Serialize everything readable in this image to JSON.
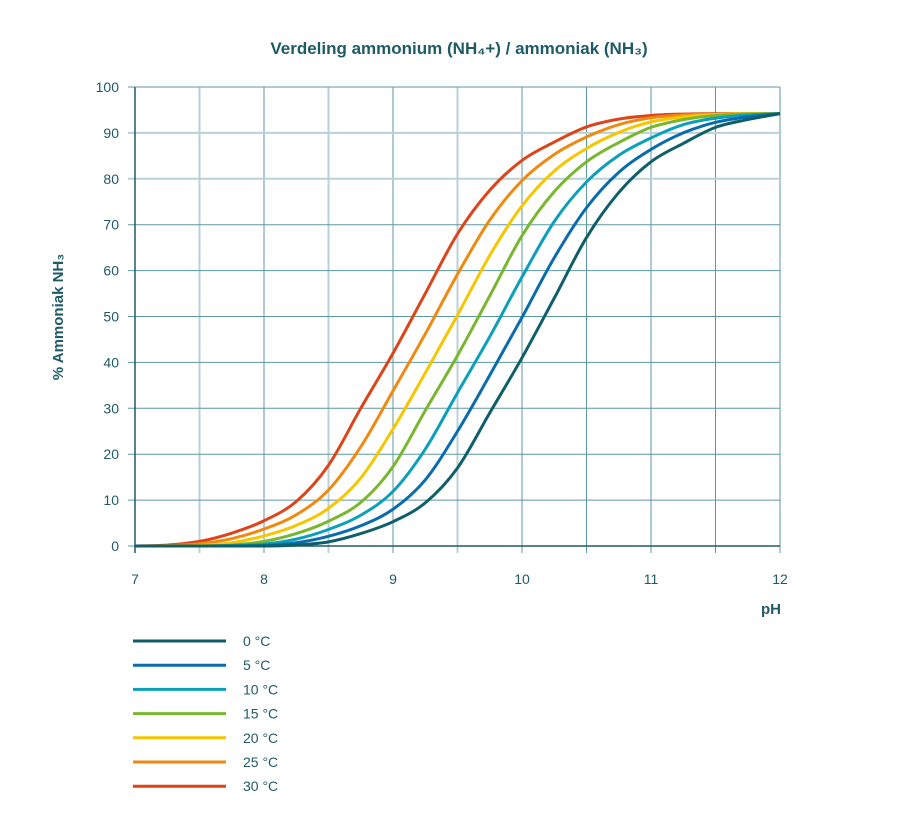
{
  "chart_data": {
    "type": "line",
    "title": "Verdeling ammonium (NH₄+) / ammoniak (NH₃)",
    "xlabel": "pH",
    "ylabel": "% Ammoniak NH₃",
    "xlim": [
      7,
      12
    ],
    "ylim": [
      0,
      100
    ],
    "xticks": [
      "7",
      "8",
      "9",
      "10",
      "11",
      "12"
    ],
    "yticks": [
      "0",
      "10",
      "20",
      "30",
      "40",
      "50",
      "60",
      "70",
      "80",
      "90",
      "100"
    ],
    "grid": true,
    "legend_position": "bottom-left",
    "x": [
      7,
      7.25,
      7.5,
      7.75,
      8,
      8.25,
      8.5,
      8.75,
      9,
      9.25,
      9.5,
      9.75,
      10,
      10.25,
      10.5,
      10.75,
      11,
      11.25,
      11.5,
      11.75,
      12
    ],
    "series": [
      {
        "name": "0 °C",
        "color": "#0f5f6a",
        "values": [
          0,
          0,
          0,
          0,
          0,
          0.2,
          0.9,
          2.7,
          5.3,
          9.4,
          17.0,
          29.0,
          41.0,
          54.0,
          67.2,
          77.0,
          83.7,
          87.7,
          91.2,
          92.9,
          94.2
        ]
      },
      {
        "name": "5 °C",
        "color": "#0a6cad",
        "values": [
          0,
          0,
          0,
          0,
          0.1,
          0.7,
          2.1,
          4.4,
          8.0,
          14.4,
          25.0,
          37.2,
          49.8,
          62.8,
          73.7,
          81.4,
          86.4,
          90.0,
          92.3,
          93.5,
          94.2
        ]
      },
      {
        "name": "10 °C",
        "color": "#0ba0ba",
        "values": [
          0,
          0,
          0,
          0.1,
          0.4,
          1.5,
          3.6,
          6.7,
          11.9,
          21.1,
          33.4,
          45.6,
          58.6,
          70.7,
          79.3,
          85.1,
          88.9,
          91.8,
          93.2,
          93.9,
          94.2
        ]
      },
      {
        "name": "15 °C",
        "color": "#7ab62e",
        "values": [
          0,
          0,
          0,
          0.2,
          1.0,
          2.7,
          5.4,
          9.5,
          17.3,
          29.5,
          41.5,
          54.5,
          67.6,
          77.2,
          83.7,
          87.9,
          91.2,
          92.9,
          93.8,
          94.1,
          94.2
        ]
      },
      {
        "name": "20 °C",
        "color": "#f6c600",
        "values": [
          0,
          0,
          0.1,
          0.7,
          2.2,
          4.5,
          8.2,
          14.8,
          25.5,
          37.7,
          50.3,
          63.3,
          74.1,
          81.7,
          86.6,
          90.1,
          92.4,
          93.5,
          94.0,
          94.2,
          94.2
        ]
      },
      {
        "name": "25 °C",
        "color": "#ef8a10",
        "values": [
          0,
          0.1,
          0.5,
          1.6,
          3.7,
          6.8,
          12.2,
          21.6,
          33.8,
          46.2,
          59.2,
          71.0,
          79.6,
          85.3,
          89.1,
          91.8,
          93.3,
          93.9,
          94.1,
          94.2,
          94.2
        ]
      },
      {
        "name": "30 °C",
        "color": "#dc4519",
        "values": [
          0,
          0.2,
          1.0,
          2.8,
          5.5,
          9.7,
          17.6,
          30.0,
          42.0,
          55.0,
          68.0,
          77.5,
          84.0,
          88.0,
          91.3,
          93.0,
          93.8,
          94.1,
          94.2,
          94.2,
          94.2
        ]
      }
    ]
  }
}
